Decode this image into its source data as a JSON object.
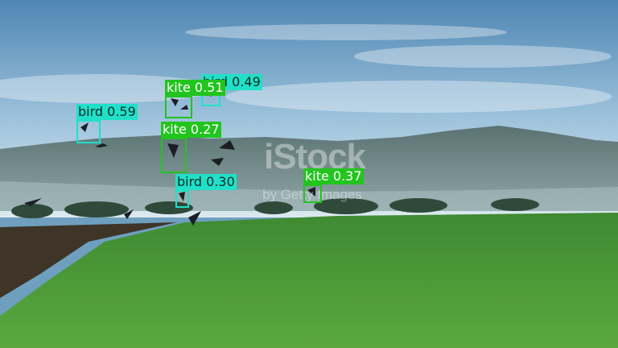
{
  "scene": {
    "description_colors": {
      "sky_top": "#4f86b3",
      "sky_bottom": "#cfe3ee",
      "hills": "#4d6363",
      "field": "#4f9a3a",
      "soil": "#3e3428"
    }
  },
  "watermark": {
    "main": "iStock",
    "sub": "by Getty Images"
  },
  "detections": [
    {
      "label": "bird 0.59",
      "class": "bird",
      "color": "#20e0c8"
    },
    {
      "label": "kite 0.51",
      "class": "kite",
      "color": "#22c41e"
    },
    {
      "label": "bird 0.49",
      "class": "bird",
      "color": "#20e0c8"
    },
    {
      "label": "kite 0.27",
      "class": "kite",
      "color": "#22c41e"
    },
    {
      "label": "bird 0.30",
      "class": "bird",
      "color": "#20e0c8"
    },
    {
      "label": "kite 0.37",
      "class": "kite",
      "color": "#22c41e"
    }
  ]
}
